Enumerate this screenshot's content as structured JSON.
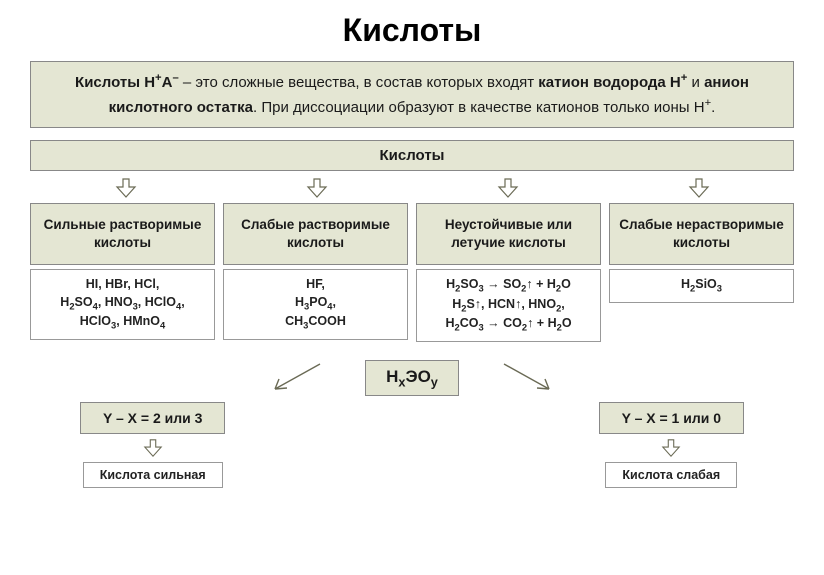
{
  "title": "Кислоты",
  "definition": {
    "part1": "Кислоты H",
    "sup1": "+",
    "part2": "A",
    "sup2": "–",
    "part3": " – это сложные вещества, в состав которых входят ",
    "bold1": "катион водорода H",
    "bold1_sup": "+",
    "part4": " и ",
    "bold2": "анион кислотного остатка",
    "part5": ". При диссоциации образуют в качестве катионов только ионы H",
    "sup3": "+",
    "part6": "."
  },
  "header": "Кислоты",
  "types": [
    {
      "name": "Сильные растворимые кислоты",
      "example_html": "HI, HBr, HCl,<br>H<sub>2</sub>SO<sub>4</sub>, HNO<sub>3</sub>, HClO<sub>4</sub>,<br>HClO<sub>3</sub>, HMnO<sub>4</sub>"
    },
    {
      "name": "Слабые растворимые кислоты",
      "example_html": "HF,<br>H<sub>3</sub>PO<sub>4</sub>,<br>CH<sub>3</sub>COOH"
    },
    {
      "name": "Неустойчивые или летучие кислоты",
      "example_html": "H<sub>2</sub>SO<sub>3</sub> → SO<sub>2</sub>↑ + H<sub>2</sub>O<br>H<sub>2</sub>S↑, HCN↑, HNO<sub>2</sub>,<br>H<sub>2</sub>CO<sub>3</sub> → CO<sub>2</sub>↑ + H<sub>2</sub>O"
    },
    {
      "name": "Слабые нерастворимые кислоты",
      "example_html": "H<sub>2</sub>SiO<sub>3</sub>"
    }
  ],
  "formula_html": "H<sub>x</sub>ЭO<sub>y</sub>",
  "rules": [
    {
      "cond": "Y – X = 2 или 3",
      "label": "Кислота сильная"
    },
    {
      "cond": "Y – X = 1 или 0",
      "label": "Кислота слабая"
    }
  ],
  "colors": {
    "box_bg": "#e4e6d3",
    "border": "#888888",
    "text": "#1a1a1a",
    "arrow": "#6a6a55"
  }
}
